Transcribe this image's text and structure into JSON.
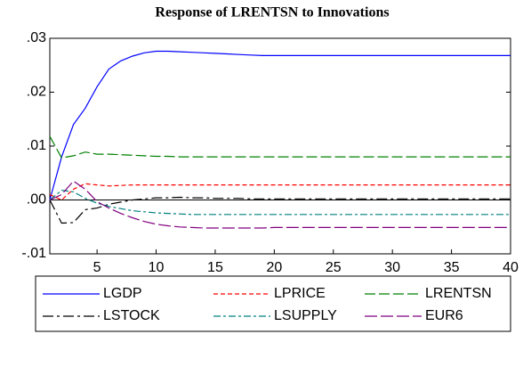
{
  "chart_data": {
    "type": "line",
    "title": "Response of LRENTSN to Innovations",
    "x": [
      1,
      2,
      3,
      4,
      5,
      6,
      7,
      8,
      9,
      10,
      11,
      12,
      13,
      14,
      15,
      16,
      17,
      18,
      19,
      20,
      21,
      22,
      23,
      24,
      25,
      26,
      27,
      28,
      29,
      30,
      31,
      32,
      33,
      34,
      35,
      36,
      37,
      38,
      39,
      40
    ],
    "xlim": [
      1,
      40
    ],
    "xticks": [
      5,
      10,
      15,
      20,
      25,
      30,
      35,
      40
    ],
    "ylim": [
      -0.01,
      0.03
    ],
    "yticks": [
      {
        "value": -0.01,
        "label": "-.01"
      },
      {
        "value": 0,
        "label": ".00"
      },
      {
        "value": 0.01,
        "label": ".01"
      },
      {
        "value": 0.02,
        "label": ".02"
      },
      {
        "value": 0.03,
        "label": ".03"
      }
    ],
    "series": [
      {
        "name": "LGDP",
        "color": "#0000ff",
        "values": [
          0,
          0.008,
          0.014,
          0.017,
          0.021,
          0.0243,
          0.0258,
          0.0267,
          0.0273,
          0.0276,
          0.0276,
          0.0275,
          0.0274,
          0.0273,
          0.0272,
          0.0271,
          0.027,
          0.0269,
          0.0268,
          0.0268,
          0.0268,
          0.0268,
          0.0268,
          0.0268,
          0.0268,
          0.0268,
          0.0268,
          0.0268,
          0.0268,
          0.0268,
          0.0268,
          0.0268,
          0.0268,
          0.0268,
          0.0268,
          0.0268,
          0.0268,
          0.0268,
          0.0268,
          0.0268
        ]
      },
      {
        "name": "LPRICE",
        "color": "#ff0000",
        "values": [
          0.001,
          0,
          0.002,
          0.003,
          0.0028,
          0.0026,
          0.0027,
          0.0028,
          0.0028,
          0.0028,
          0.0028,
          0.0028,
          0.0028,
          0.0028,
          0.0028,
          0.0028,
          0.0028,
          0.0028,
          0.0028,
          0.0028,
          0.0028,
          0.0028,
          0.0028,
          0.0028,
          0.0028,
          0.0028,
          0.0028,
          0.0028,
          0.0028,
          0.0028,
          0.0028,
          0.0028,
          0.0028,
          0.0028,
          0.0028,
          0.0028,
          0.0028,
          0.0028,
          0.0028,
          0.0028
        ]
      },
      {
        "name": "LRENTSN",
        "color": "#008000",
        "values": [
          0.0118,
          0.0078,
          0.0082,
          0.0089,
          0.0085,
          0.0085,
          0.0084,
          0.0083,
          0.0082,
          0.0081,
          0.0081,
          0.008,
          0.008,
          0.008,
          0.008,
          0.008,
          0.008,
          0.008,
          0.008,
          0.008,
          0.008,
          0.008,
          0.008,
          0.008,
          0.008,
          0.008,
          0.008,
          0.008,
          0.008,
          0.008,
          0.008,
          0.008,
          0.008,
          0.008,
          0.008,
          0.008,
          0.008,
          0.008,
          0.008,
          0.008
        ]
      },
      {
        "name": "LSTOCK",
        "color": "#000000",
        "values": [
          0,
          -0.0043,
          -0.0042,
          -0.0018,
          -0.0015,
          -0.0008,
          -0.0004,
          0,
          0.0002,
          0.0004,
          0.0004,
          0.0005,
          0.0004,
          0.0004,
          0.0003,
          0.0003,
          0.0003,
          0.0002,
          0.0002,
          0.0002,
          0.0002,
          0.0002,
          0.0002,
          0.0002,
          0.0002,
          0.0002,
          0.0002,
          0.0002,
          0.0002,
          0.0002,
          0.0002,
          0.0002,
          0.0002,
          0.0002,
          0.0002,
          0.0002,
          0.0002,
          0.0002,
          0.0002,
          0.0002
        ]
      },
      {
        "name": "LSUPPLY",
        "color": "#008080",
        "values": [
          0,
          0.0018,
          0.0015,
          0.0003,
          -0.0006,
          -0.0012,
          -0.0016,
          -0.002,
          -0.0022,
          -0.0024,
          -0.0025,
          -0.0026,
          -0.0027,
          -0.0027,
          -0.0027,
          -0.0027,
          -0.0027,
          -0.0027,
          -0.0027,
          -0.0027,
          -0.0027,
          -0.0027,
          -0.0027,
          -0.0027,
          -0.0027,
          -0.0027,
          -0.0027,
          -0.0027,
          -0.0027,
          -0.0027,
          -0.0027,
          -0.0027,
          -0.0027,
          -0.0027,
          -0.0027,
          -0.0027,
          -0.0027,
          -0.0027,
          -0.0027,
          -0.0027
        ]
      },
      {
        "name": "EUR6",
        "color": "#800080",
        "values": [
          0,
          0.001,
          0.0035,
          0.002,
          -0.0003,
          -0.0015,
          -0.0025,
          -0.0033,
          -0.004,
          -0.0045,
          -0.0048,
          -0.005,
          -0.0051,
          -0.0052,
          -0.0052,
          -0.0052,
          -0.0052,
          -0.0052,
          -0.0052,
          -0.0051,
          -0.0051,
          -0.0051,
          -0.0051,
          -0.0051,
          -0.0051,
          -0.0051,
          -0.0051,
          -0.0051,
          -0.0051,
          -0.0051,
          -0.0051,
          -0.0051,
          -0.0051,
          -0.0051,
          -0.0051,
          -0.0051,
          -0.0051,
          -0.0051,
          -0.0051,
          -0.0051
        ]
      }
    ]
  }
}
